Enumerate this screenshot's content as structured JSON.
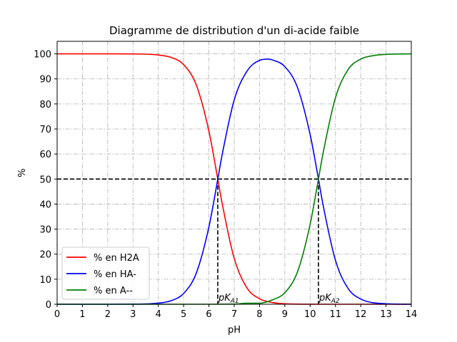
{
  "chart_data": {
    "type": "line",
    "title": "Diagramme de distribution d'un di-acide faible",
    "xlabel": "pH",
    "ylabel": "%",
    "xlim": [
      0,
      14
    ],
    "ylim": [
      0,
      105
    ],
    "xticks": [
      0,
      1,
      2,
      3,
      4,
      5,
      6,
      7,
      8,
      9,
      10,
      11,
      12,
      13,
      14
    ],
    "yticks": [
      0,
      10,
      20,
      30,
      40,
      50,
      60,
      70,
      80,
      90,
      100
    ],
    "grid": true,
    "legend_position": "lower-left",
    "pKa1": 6.35,
    "pKa2": 10.33,
    "series": [
      {
        "name": "% en H2A",
        "color": "#ff0000",
        "x": [
          0,
          1,
          2,
          3,
          4,
          4.5,
          5,
          5.5,
          6,
          6.35,
          6.5,
          7,
          7.5,
          8,
          8.5,
          9,
          10,
          11,
          12,
          14
        ],
        "values": [
          100,
          100,
          100,
          99.96,
          99.55,
          98.6,
          95.7,
          87.6,
          69.1,
          50,
          41.5,
          18.3,
          6.6,
          2.2,
          0.7,
          0.2,
          0.02,
          0,
          0,
          0
        ]
      },
      {
        "name": "% en HA-",
        "color": "#0000ff",
        "x": [
          0,
          2,
          3,
          4,
          4.5,
          5,
          5.5,
          6,
          6.35,
          6.5,
          7,
          7.5,
          8,
          8.34,
          8.5,
          9,
          9.5,
          10,
          10.33,
          10.5,
          11,
          11.5,
          12,
          13,
          14
        ],
        "values": [
          0,
          0,
          0.04,
          0.45,
          1.4,
          4.3,
          12.4,
          30.9,
          49.9,
          58.5,
          81.6,
          93.0,
          97.4,
          97.9,
          97.6,
          94.9,
          86.6,
          67.8,
          50,
          40.3,
          17.6,
          6.3,
          2.1,
          0.2,
          0
        ]
      },
      {
        "name": "% en A--",
        "color": "#008000",
        "x": [
          0,
          6,
          7,
          7.5,
          8,
          8.5,
          9,
          9.5,
          10,
          10.33,
          10.5,
          11,
          11.5,
          12,
          12.5,
          13,
          14
        ],
        "values": [
          0,
          0,
          0.04,
          0.4,
          0.4,
          1.7,
          4.6,
          12.9,
          31.9,
          50,
          59.7,
          82.4,
          93.7,
          97.9,
          99.3,
          99.8,
          100
        ]
      }
    ],
    "annotations": [
      {
        "text": "pK",
        "sub": "A1",
        "x": 6.35
      },
      {
        "text": "pK",
        "sub": "A2",
        "x": 10.33
      }
    ]
  }
}
